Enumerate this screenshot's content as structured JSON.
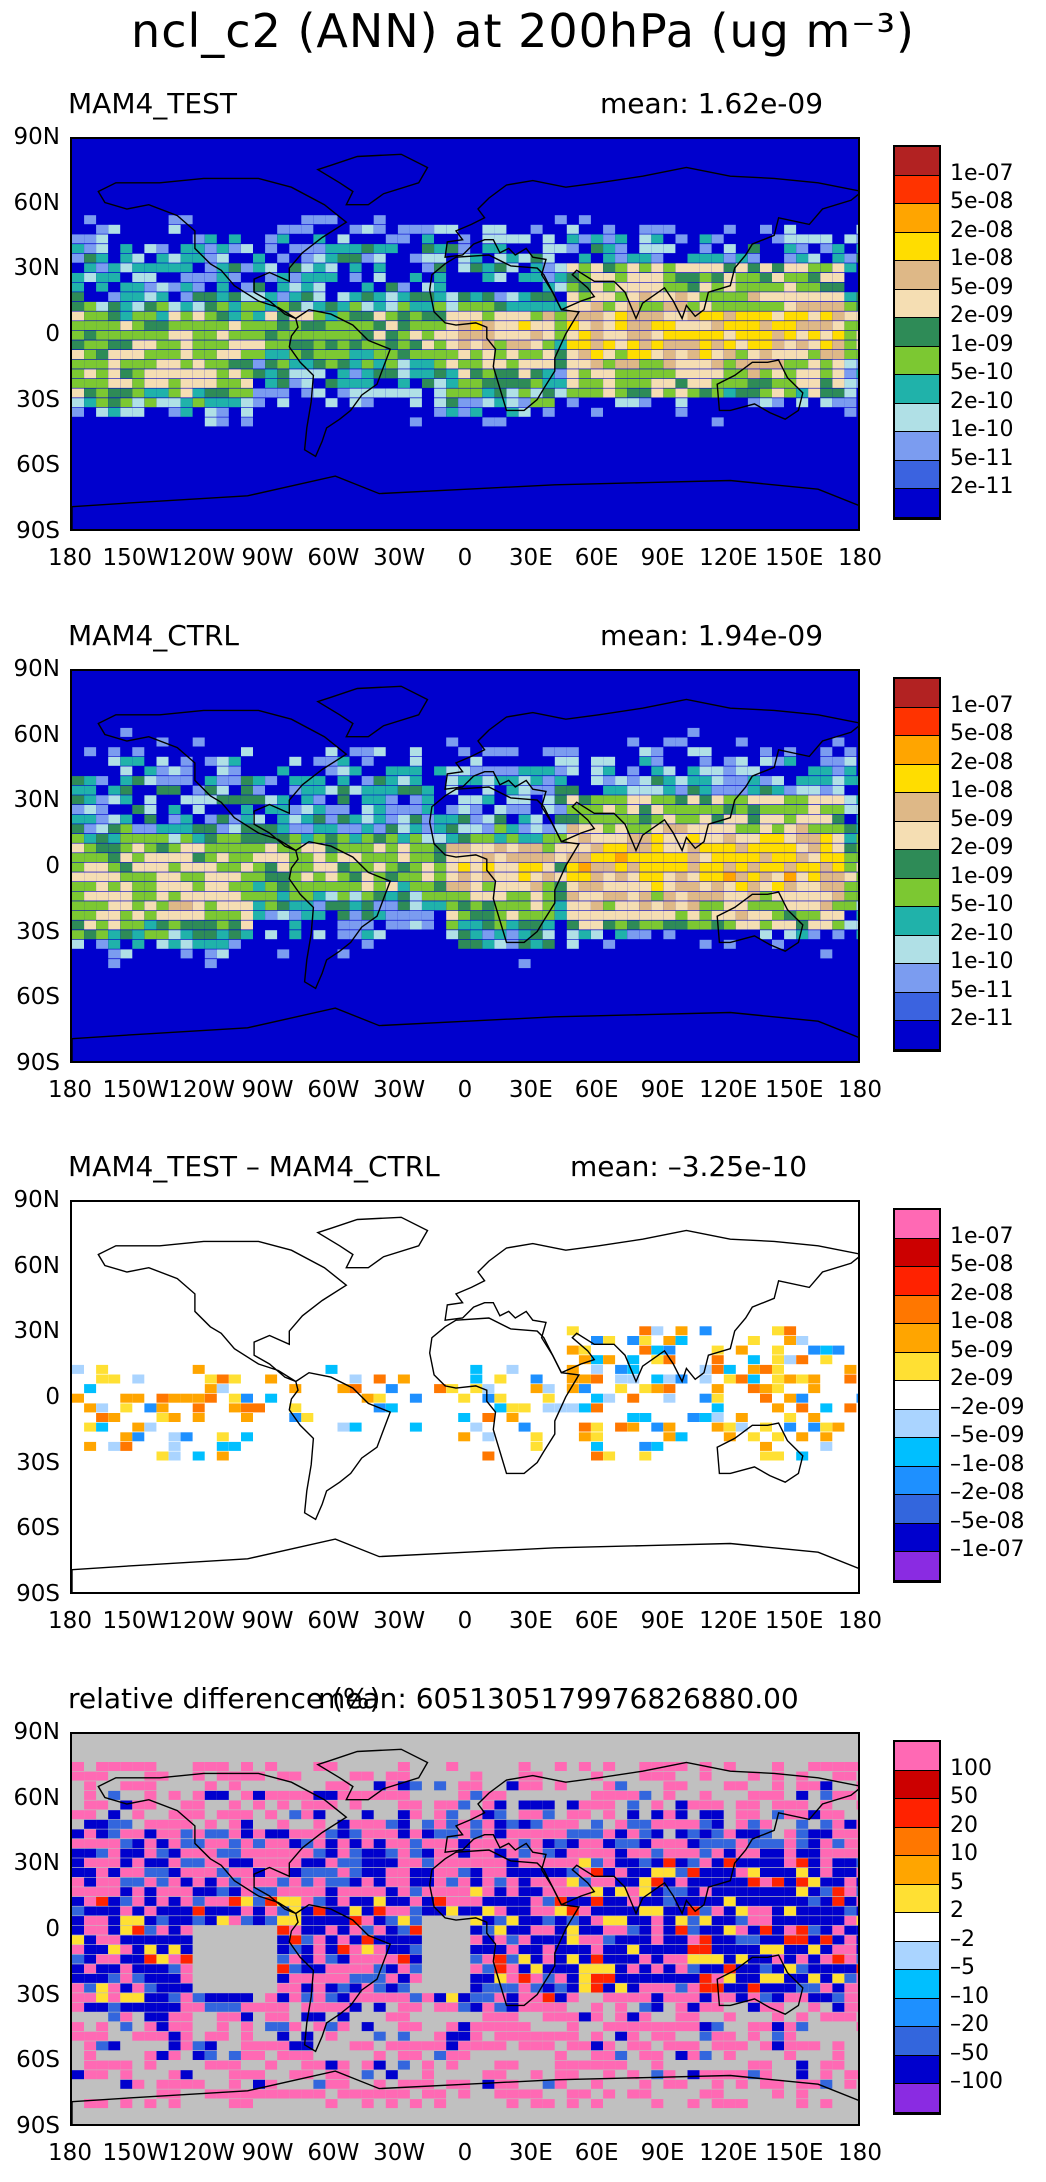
{
  "main_title": "ncl_c2 (ANN) at 200hPa (ug m⁻³)",
  "axes": {
    "lat_ticks": [
      "90N",
      "60N",
      "30N",
      "0",
      "30S",
      "60S",
      "90S"
    ],
    "lon_ticks": [
      "180",
      "150W",
      "120W",
      "90W",
      "60W",
      "30W",
      "0",
      "30E",
      "60E",
      "90E",
      "120E",
      "150E",
      "180"
    ]
  },
  "chart_data": [
    {
      "type": "heatmap",
      "title": "MAM4_TEST",
      "mean_label": "mean:  1.62e-09",
      "mean": 1.62e-09,
      "xlim": [
        -180,
        180
      ],
      "ylim": [
        -90,
        90
      ],
      "colorbar": {
        "colors": [
          "#b22222",
          "#ff3300",
          "#ffa500",
          "#ffdd00",
          "#deb887",
          "#f5deb3",
          "#2e8b57",
          "#7cc832",
          "#20b2aa",
          "#b0e0e6",
          "#7b9cf0",
          "#3b63e0",
          "#0000cd"
        ],
        "labels": [
          "1e-07",
          "5e-08",
          "2e-08",
          "1e-08",
          "5e-09",
          "2e-09",
          "1e-09",
          "5e-10",
          "2e-10",
          "1e-10",
          "5e-11",
          "2e-11"
        ]
      },
      "background_color": "#0000cd"
    },
    {
      "type": "heatmap",
      "title": "MAM4_CTRL",
      "mean_label": "mean:  1.94e-09",
      "mean": 1.94e-09,
      "xlim": [
        -180,
        180
      ],
      "ylim": [
        -90,
        90
      ],
      "colorbar": {
        "colors": [
          "#b22222",
          "#ff3300",
          "#ffa500",
          "#ffdd00",
          "#deb887",
          "#f5deb3",
          "#2e8b57",
          "#7cc832",
          "#20b2aa",
          "#b0e0e6",
          "#7b9cf0",
          "#3b63e0",
          "#0000cd"
        ],
        "labels": [
          "1e-07",
          "5e-08",
          "2e-08",
          "1e-08",
          "5e-09",
          "2e-09",
          "1e-09",
          "5e-10",
          "2e-10",
          "1e-10",
          "5e-11",
          "2e-11"
        ]
      },
      "background_color": "#0000cd"
    },
    {
      "type": "heatmap",
      "title": "MAM4_TEST – MAM4_CTRL",
      "mean_label": "mean: –3.25e-10",
      "mean": -3.25e-10,
      "xlim": [
        -180,
        180
      ],
      "ylim": [
        -90,
        90
      ],
      "colorbar": {
        "colors": [
          "#ff69b4",
          "#cc0000",
          "#ff2200",
          "#ff7700",
          "#ffa500",
          "#ffe033",
          "#ffffff",
          "#aad4ff",
          "#00bfff",
          "#1e90ff",
          "#3366dd",
          "#0000cd",
          "#8a2be2"
        ],
        "labels": [
          "1e-07",
          "5e-08",
          "2e-08",
          "1e-08",
          "5e-09",
          "2e-09",
          "–2e-09",
          "–5e-09",
          "–1e-08",
          "–2e-08",
          "–5e-08",
          "–1e-07"
        ]
      },
      "background_color": "#ffffff"
    },
    {
      "type": "heatmap",
      "title": "relative difference (%)",
      "mean_label": "mean: 6051305179976826880.00",
      "mean": 6.051305179976827e+18,
      "xlim": [
        -180,
        180
      ],
      "ylim": [
        -90,
        90
      ],
      "colorbar": {
        "colors": [
          "#ff69b4",
          "#cc0000",
          "#ff2200",
          "#ff7700",
          "#ffa500",
          "#ffe033",
          "#ffffff",
          "#aad4ff",
          "#00bfff",
          "#1e90ff",
          "#3366dd",
          "#0000cd",
          "#8a2be2"
        ],
        "labels": [
          "100",
          "50",
          "20",
          "10",
          "5",
          "2",
          "–2",
          "–5",
          "–10",
          "–20",
          "–50",
          "–100"
        ]
      },
      "background_color": "#c0c0c0"
    }
  ]
}
